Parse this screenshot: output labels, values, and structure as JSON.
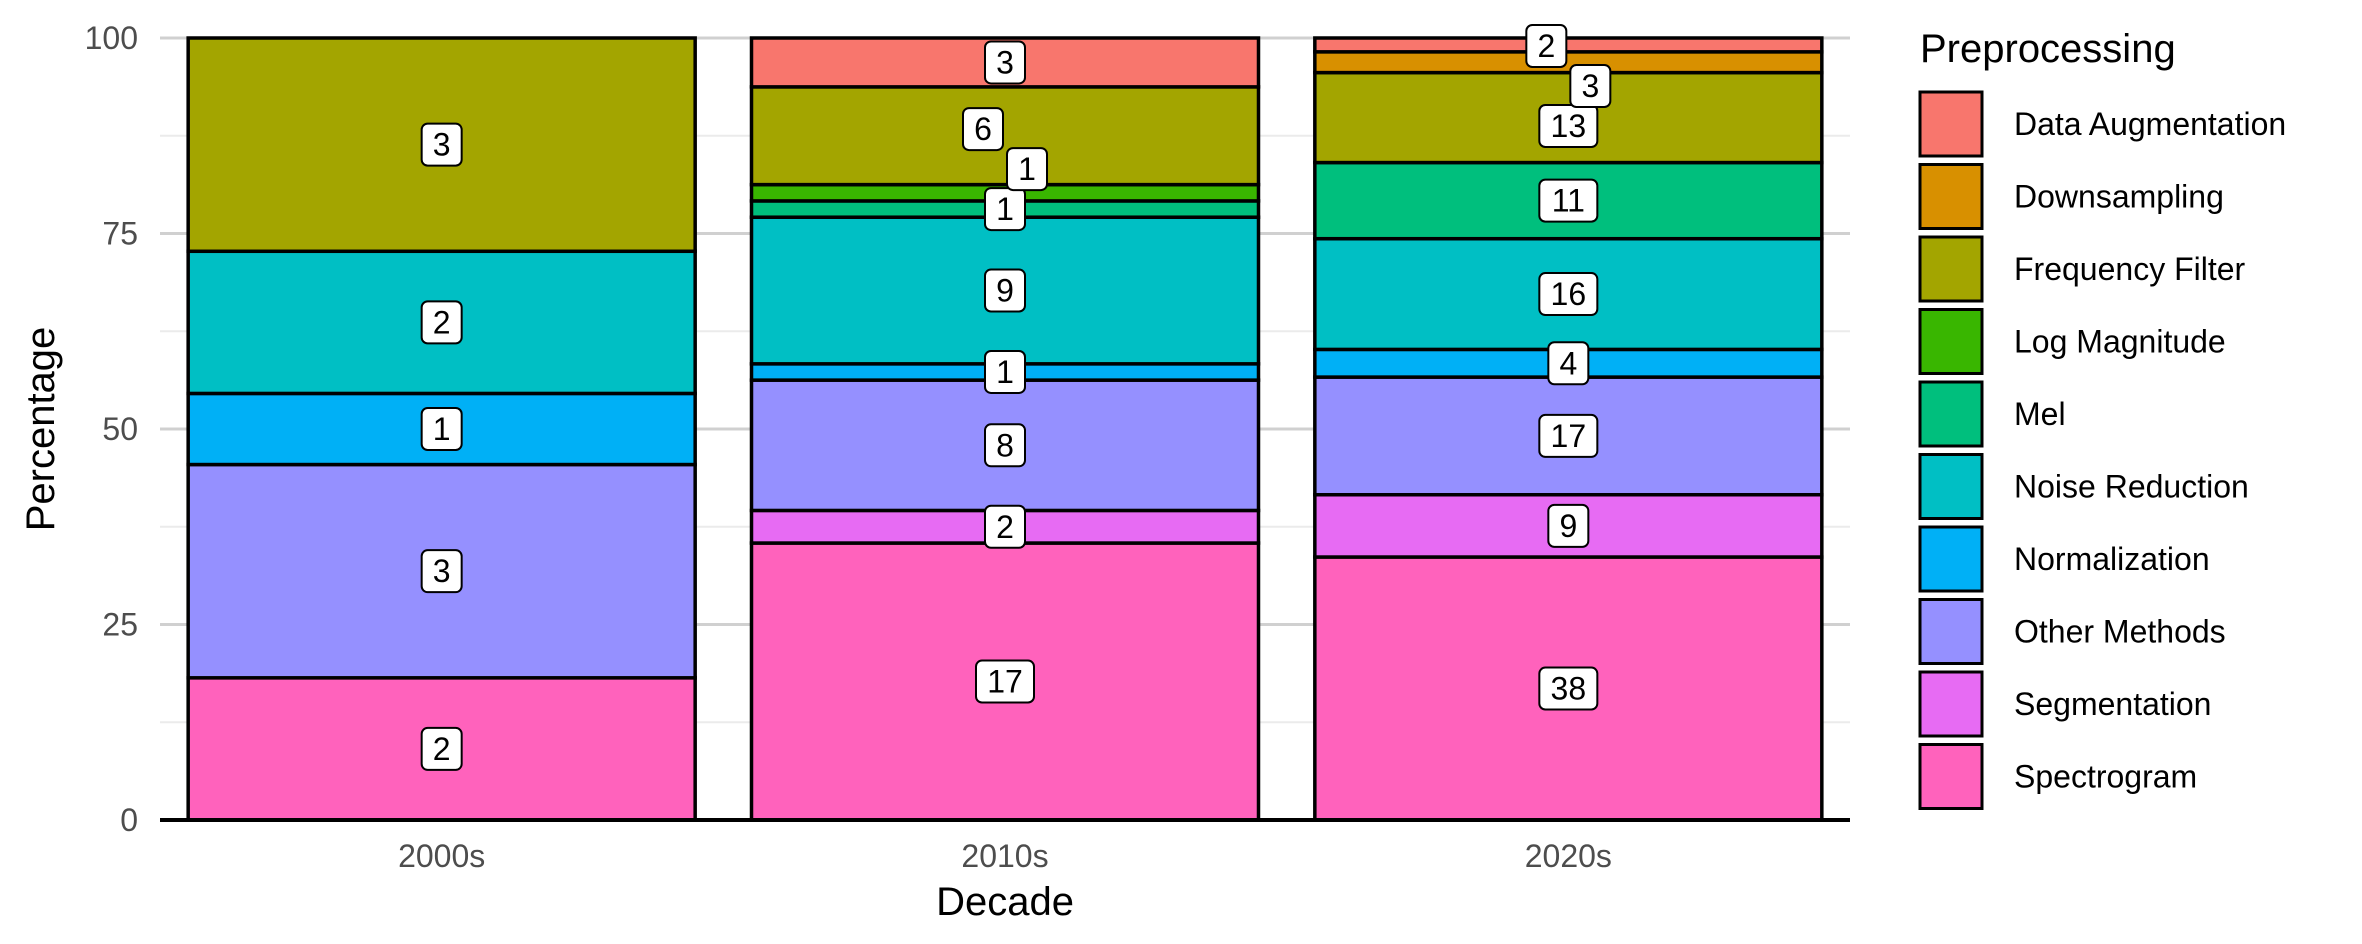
{
  "chart_data": {
    "type": "bar",
    "stacked": true,
    "normalized": true,
    "title": "",
    "xlabel": "Decade",
    "ylabel": "Percentage",
    "ylim": [
      0,
      100
    ],
    "yticks": [
      0,
      25,
      50,
      75,
      100
    ],
    "grid": true,
    "legend_position": "right",
    "legend_title": "Preprocessing",
    "categories": [
      "2000s",
      "2010s",
      "2020s"
    ],
    "series": [
      {
        "name": "Data Augmentation",
        "color": "#F8766D",
        "values": [
          0,
          3,
          2
        ]
      },
      {
        "name": "Downsampling",
        "color": "#D89000",
        "values": [
          0,
          0,
          3
        ]
      },
      {
        "name": "Frequency Filter",
        "color": "#A3A500",
        "values": [
          3,
          6,
          13
        ]
      },
      {
        "name": "Log Magnitude",
        "color": "#39B600",
        "values": [
          0,
          1,
          0
        ]
      },
      {
        "name": "Mel",
        "color": "#00BF7D",
        "values": [
          0,
          1,
          11
        ]
      },
      {
        "name": "Noise Reduction",
        "color": "#00BFC4",
        "values": [
          2,
          9,
          16
        ]
      },
      {
        "name": "Normalization",
        "color": "#00B0F6",
        "values": [
          1,
          1,
          4
        ]
      },
      {
        "name": "Other Methods",
        "color": "#9590FF",
        "values": [
          3,
          8,
          17
        ]
      },
      {
        "name": "Segmentation",
        "color": "#E76BF3",
        "values": [
          0,
          2,
          9
        ]
      },
      {
        "name": "Spectrogram",
        "color": "#FF62BC",
        "values": [
          2,
          17,
          38
        ]
      }
    ]
  }
}
